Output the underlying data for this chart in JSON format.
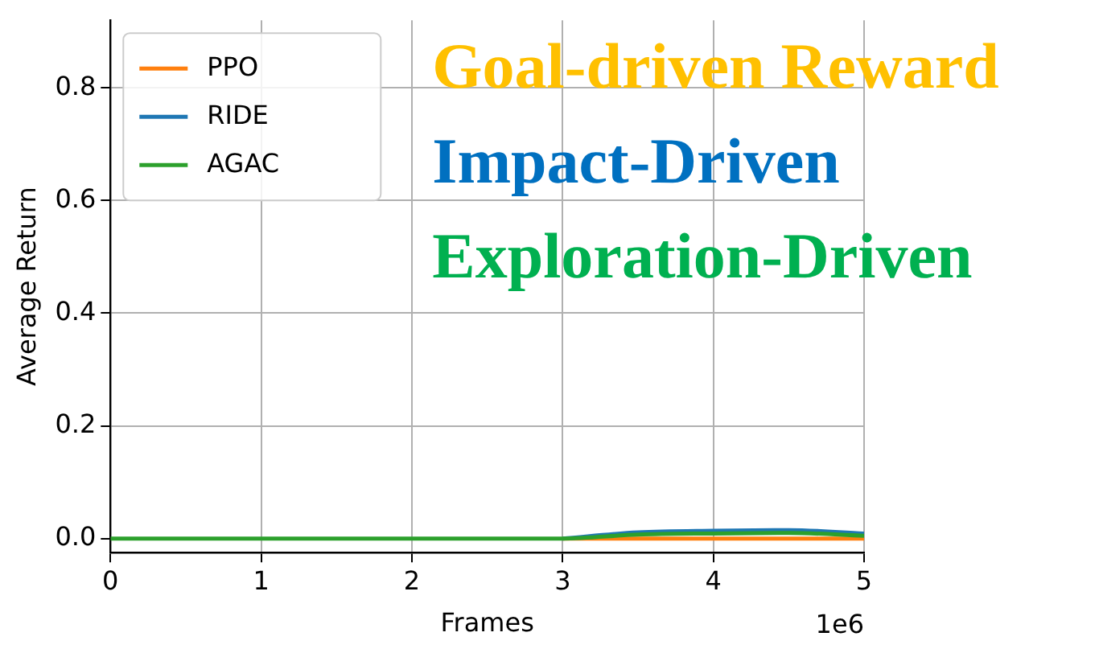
{
  "chart_data": {
    "type": "line",
    "xlabel": "Frames",
    "ylabel": "Average Return",
    "x": [
      0,
      0.5,
      1,
      1.5,
      2,
      2.5,
      3,
      3.5,
      4,
      4.5,
      5
    ],
    "series": [
      {
        "name": "PPO",
        "color": "#ff7f0e",
        "values": [
          null,
          null,
          null,
          null,
          null,
          null,
          0,
          0,
          0,
          0,
          0
        ]
      },
      {
        "name": "RIDE",
        "color": "#1f77b4",
        "values": [
          null,
          null,
          null,
          null,
          null,
          null,
          0,
          0.011,
          0.014,
          0.015,
          0.009
        ]
      },
      {
        "name": "AGAC",
        "color": "#2ca02c",
        "values": [
          0,
          0,
          0,
          0,
          0,
          0,
          0,
          0.007,
          0.009,
          0.01,
          0.005
        ]
      }
    ],
    "xlim": [
      0,
      5
    ],
    "xticks": [
      0,
      1,
      2,
      3,
      4,
      5
    ],
    "ylim": [
      -0.025,
      0.92
    ],
    "yticks": [
      {
        "value": 0,
        "label": "0.0"
      },
      {
        "value": 0.2,
        "label": "0.2"
      },
      {
        "value": 0.4,
        "label": "0.4"
      },
      {
        "value": 0.6,
        "label": "0.6"
      },
      {
        "value": 0.8,
        "label": "0.8"
      }
    ],
    "grid": true,
    "legend": "top left",
    "marker": "none",
    "line_style": "solid",
    "annotations": [
      "1e6",
      "Goal-driven Reward",
      "Impact-Driven",
      "Exploration-Driven"
    ]
  }
}
